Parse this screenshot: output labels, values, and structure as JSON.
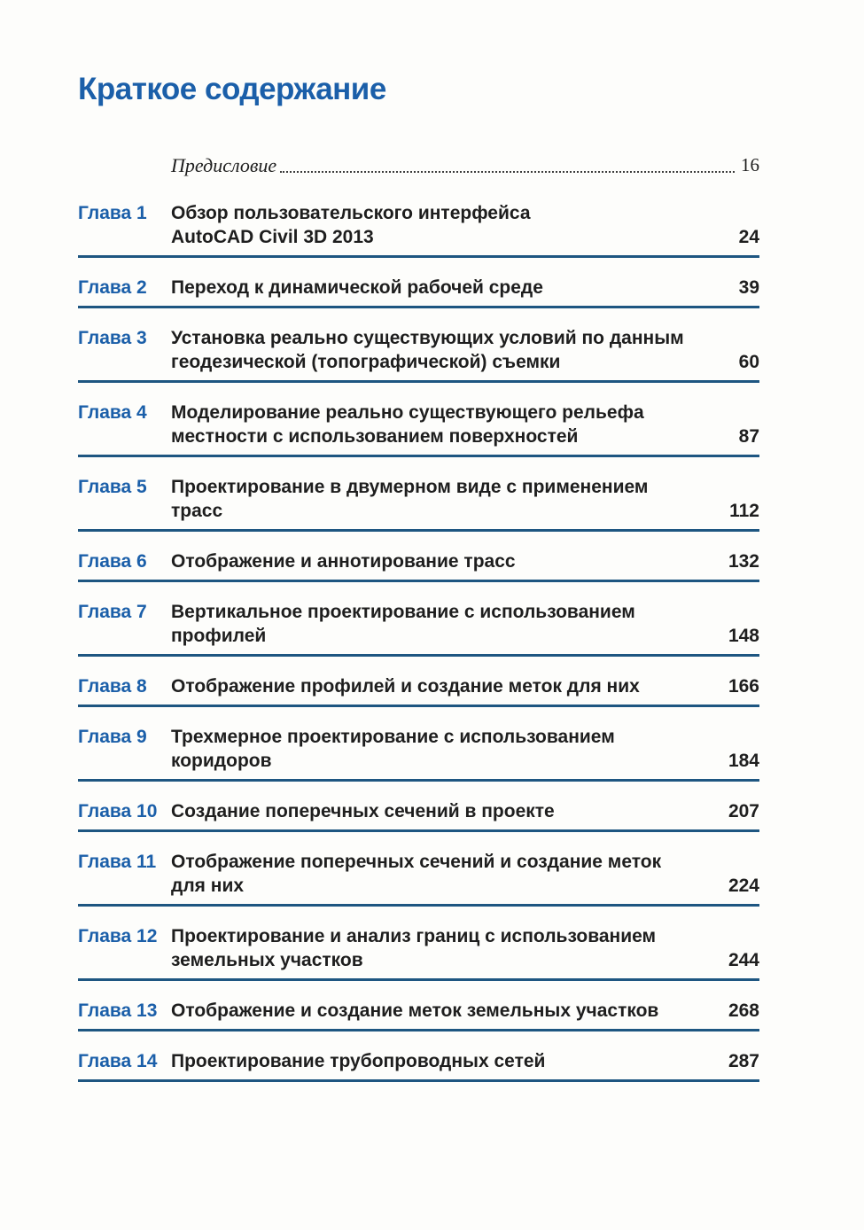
{
  "page": {
    "title": "Краткое содержание"
  },
  "preface": {
    "label": "Предисловие",
    "page": "16"
  },
  "chapters": [
    {
      "label": "Глава 1",
      "title_lines": [
        "Обзор пользовательского интерфейса",
        "AutoCAD Civil 3D 2013"
      ],
      "page": "24"
    },
    {
      "label": "Глава 2",
      "title_lines": [
        "Переход к динамической рабочей среде"
      ],
      "page": "39"
    },
    {
      "label": "Глава 3",
      "title_lines": [
        "Установка реально существующих условий по данным",
        "геодезической (топографической) съемки"
      ],
      "page": "60"
    },
    {
      "label": "Глава 4",
      "title_lines": [
        "Моделирование реально существующего рельефа",
        "местности с использованием поверхностей"
      ],
      "page": "87"
    },
    {
      "label": "Глава 5",
      "title_lines": [
        "Проектирование в двумерном виде с применением",
        "трасс"
      ],
      "page": "112"
    },
    {
      "label": "Глава 6",
      "title_lines": [
        "Отображение и аннотирование трасс"
      ],
      "page": "132"
    },
    {
      "label": "Глава 7",
      "title_lines": [
        "Вертикальное проектирование с использованием",
        "профилей"
      ],
      "page": "148"
    },
    {
      "label": "Глава 8",
      "title_lines": [
        "Отображение профилей и создание меток для них"
      ],
      "page": "166"
    },
    {
      "label": "Глава 9",
      "title_lines": [
        "Трехмерное проектирование с использованием",
        "коридоров"
      ],
      "page": "184"
    },
    {
      "label": "Глава 10",
      "title_lines": [
        "Создание поперечных сечений в проекте"
      ],
      "page": "207"
    },
    {
      "label": "Глава 11",
      "title_lines": [
        "Отображение поперечных сечений и создание меток",
        "для них"
      ],
      "page": "224"
    },
    {
      "label": "Глава 12",
      "title_lines": [
        "Проектирование и анализ границ с использованием",
        "земельных участков"
      ],
      "page": "244"
    },
    {
      "label": "Глава 13",
      "title_lines": [
        "Отображение и создание меток земельных участков"
      ],
      "page": "268"
    },
    {
      "label": "Глава 14",
      "title_lines": [
        "Проектирование трубопроводных сетей"
      ],
      "page": "287"
    }
  ],
  "colors": {
    "accent_blue": "#1b5fa9",
    "rule_blue": "#1e5681",
    "text": "#1e1e1e",
    "background": "#fdfdfb"
  }
}
